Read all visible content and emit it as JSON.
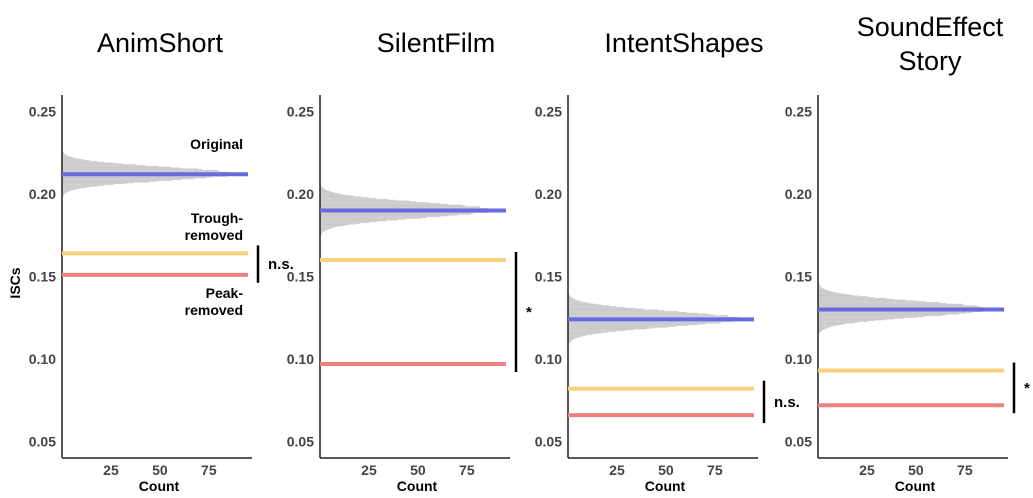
{
  "chart_data": {
    "type": "bar",
    "ylabel": "ISCs",
    "xlabel": "Count",
    "ylim": [
      0.04,
      0.26
    ],
    "yticks": [
      0.05,
      0.1,
      0.15,
      0.2,
      0.25
    ],
    "ytick_labels": [
      "0.05",
      "0.10",
      "0.15",
      "0.20",
      "0.25"
    ],
    "xlim": [
      0,
      95
    ],
    "xticks": [
      25,
      50,
      75
    ],
    "xtick_labels": [
      "25",
      "50",
      "75"
    ],
    "line_colors": {
      "original": "#6a6ae0",
      "trough_removed": "#f9d07c",
      "peak_removed": "#f07f7f"
    },
    "histogram_color": "#c8c8c8",
    "line_labels": {
      "original": "Original",
      "trough_removed": [
        "Trough-",
        "removed"
      ],
      "peak_removed": [
        "Peak-",
        "removed"
      ]
    },
    "panels": [
      {
        "title": [
          "AnimShort"
        ],
        "original": 0.212,
        "trough_removed": 0.164,
        "peak_removed": 0.151,
        "null_sd": 0.004,
        "null_mean": 0.212,
        "significance": "n.s."
      },
      {
        "title": [
          "SilentFilm"
        ],
        "original": 0.19,
        "trough_removed": 0.16,
        "peak_removed": 0.097,
        "null_sd": 0.0045,
        "null_mean": 0.19,
        "significance": "*"
      },
      {
        "title": [
          "IntentShapes"
        ],
        "original": 0.124,
        "trough_removed": 0.082,
        "peak_removed": 0.066,
        "null_sd": 0.0045,
        "null_mean": 0.124,
        "significance": "n.s."
      },
      {
        "title": [
          "SoundEffect",
          "Story"
        ],
        "original": 0.13,
        "trough_removed": 0.093,
        "peak_removed": 0.072,
        "null_sd": 0.0045,
        "null_mean": 0.13,
        "significance": "*"
      }
    ]
  }
}
